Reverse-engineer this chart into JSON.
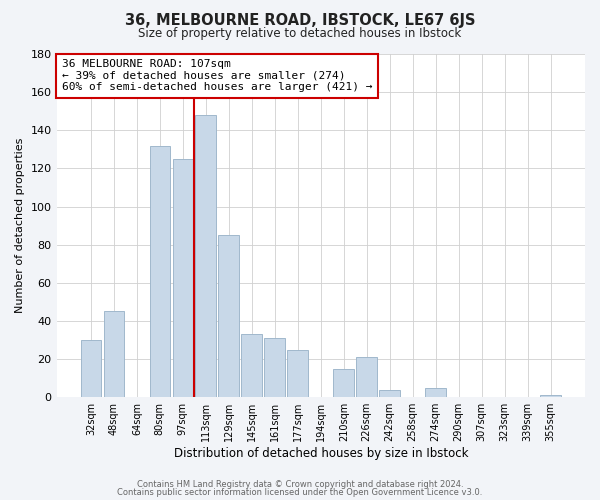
{
  "title": "36, MELBOURNE ROAD, IBSTOCK, LE67 6JS",
  "subtitle": "Size of property relative to detached houses in Ibstock",
  "xlabel": "Distribution of detached houses by size in Ibstock",
  "ylabel": "Number of detached properties",
  "bar_labels": [
    "32sqm",
    "48sqm",
    "64sqm",
    "80sqm",
    "97sqm",
    "113sqm",
    "129sqm",
    "145sqm",
    "161sqm",
    "177sqm",
    "194sqm",
    "210sqm",
    "226sqm",
    "242sqm",
    "258sqm",
    "274sqm",
    "290sqm",
    "307sqm",
    "323sqm",
    "339sqm",
    "355sqm"
  ],
  "bar_values": [
    30,
    45,
    0,
    132,
    125,
    148,
    85,
    33,
    31,
    25,
    0,
    15,
    21,
    4,
    0,
    5,
    0,
    0,
    0,
    0,
    1
  ],
  "bar_color": "#c8d8e8",
  "bar_edge_color": "#a0b8cc",
  "vline_x_index": 5,
  "vline_color": "#cc0000",
  "annotation_text": "36 MELBOURNE ROAD: 107sqm\n← 39% of detached houses are smaller (274)\n60% of semi-detached houses are larger (421) →",
  "annotation_box_edge_color": "#cc0000",
  "ylim": [
    0,
    180
  ],
  "yticks": [
    0,
    20,
    40,
    60,
    80,
    100,
    120,
    140,
    160,
    180
  ],
  "footer_line1": "Contains HM Land Registry data © Crown copyright and database right 2024.",
  "footer_line2": "Contains public sector information licensed under the Open Government Licence v3.0.",
  "bg_color": "#f2f4f8",
  "plot_bg_color": "#ffffff"
}
